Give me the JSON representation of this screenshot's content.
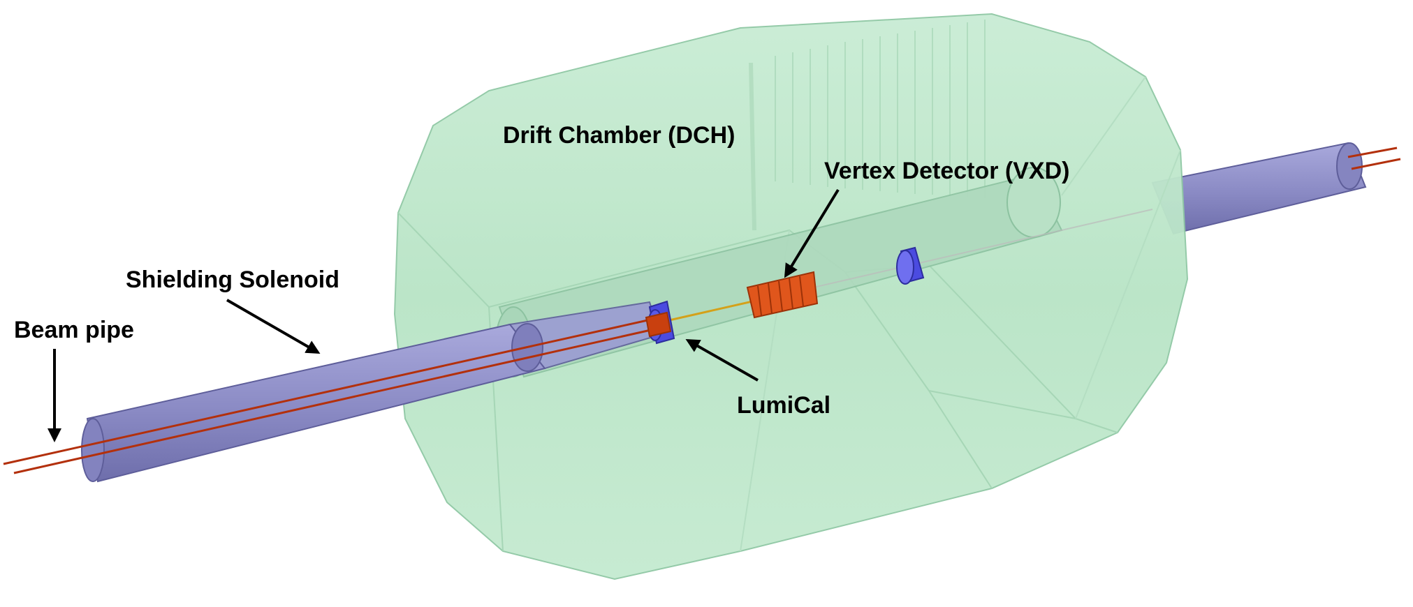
{
  "labels": {
    "drift_chamber": "Drift Chamber (DCH)",
    "vertex_detector": "Vertex Detector (VXD)",
    "shielding_solenoid": "Shielding Solenoid",
    "beam_pipe": "Beam pipe",
    "lumical": "LumiCal"
  },
  "colors": {
    "drift_chamber_fill": "#bfe8cd",
    "drift_chamber_edge": "#8fc8a4",
    "solenoid_fill": "#8f8fc7",
    "solenoid_dark": "#5e5e9a",
    "beam_line": "#b3300c",
    "vxd": "#e0561c",
    "lumical": "#4b4be0",
    "arrow": "#000000"
  }
}
